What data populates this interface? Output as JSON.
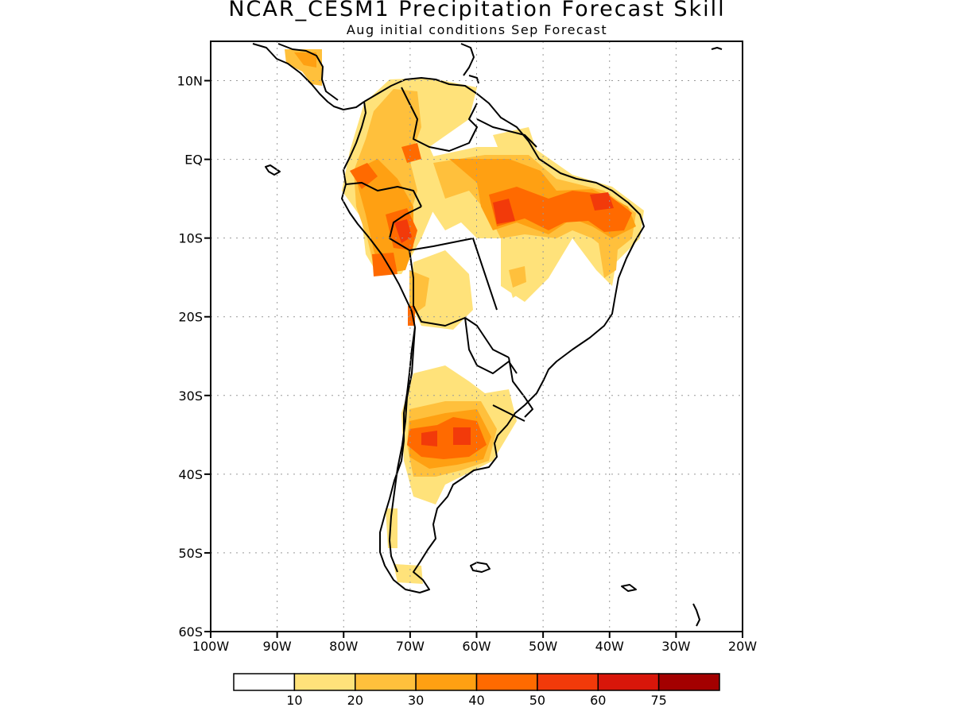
{
  "title": "NCAR_CESM1 Precipitation Forecast Skill",
  "subtitle": "Aug initial conditions  Sep Forecast",
  "map": {
    "lat_ticks": [
      "10N",
      "EQ",
      "10S",
      "20S",
      "30S",
      "40S",
      "50S",
      "60S"
    ],
    "lon_ticks": [
      "100W",
      "90W",
      "80W",
      "70W",
      "60W",
      "50W",
      "40W",
      "30W",
      "20W"
    ],
    "extent": {
      "lon": [
        -100,
        -20
      ],
      "lat": [
        -60,
        15
      ]
    }
  },
  "colorbar": {
    "labels": [
      "10",
      "20",
      "30",
      "40",
      "50",
      "60",
      "75"
    ],
    "colors": [
      "#ffffff",
      "#ffe27a",
      "#ffc03c",
      "#ffa012",
      "#ff6a00",
      "#f23a0a",
      "#d8160a",
      "#a30000"
    ]
  }
}
